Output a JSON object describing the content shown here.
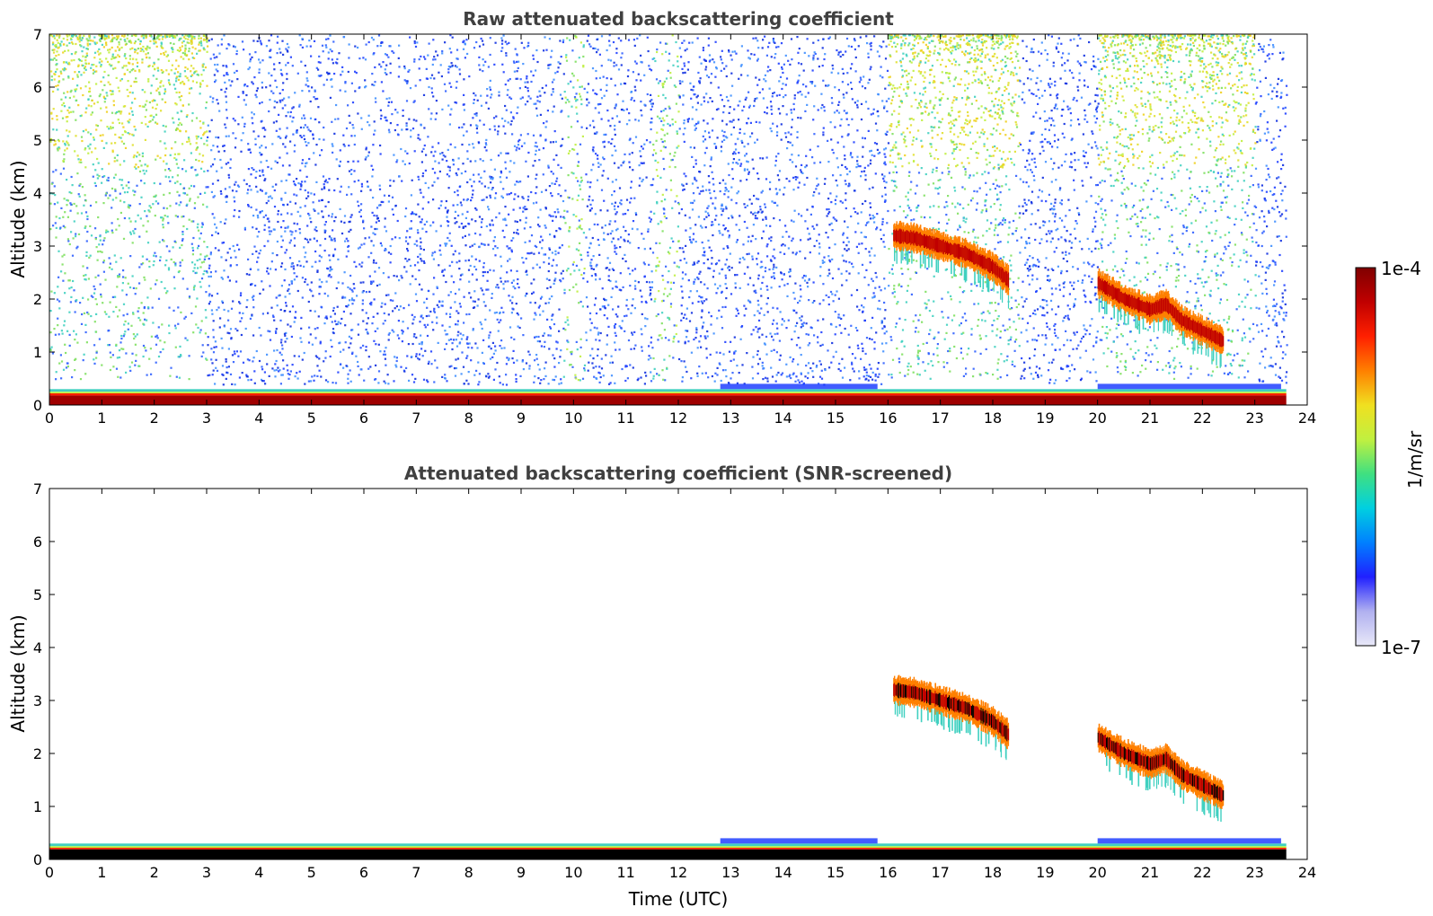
{
  "chart_data": [
    {
      "type": "heatmap",
      "title": "Raw attenuated backscattering coefficient",
      "xlabel": "",
      "ylabel": "Altitude (km)",
      "xlim": [
        0,
        24
      ],
      "ylim": [
        0,
        7
      ],
      "xticks": [
        "0",
        "1",
        "2",
        "3",
        "4",
        "5",
        "6",
        "7",
        "8",
        "9",
        "10",
        "11",
        "12",
        "13",
        "14",
        "15",
        "16",
        "17",
        "18",
        "19",
        "20",
        "21",
        "22",
        "23",
        "24"
      ],
      "yticks": [
        "0",
        "1",
        "2",
        "3",
        "4",
        "5",
        "6",
        "7"
      ],
      "data_end_time": 23.6,
      "surface_layer_top_km": 0.3,
      "noise_segments": [
        {
          "start": 0.0,
          "end": 3.0,
          "level": "high-yellow-green"
        },
        {
          "start": 3.0,
          "end": 9.8,
          "level": "blue"
        },
        {
          "start": 9.8,
          "end": 10.2,
          "level": "green"
        },
        {
          "start": 10.2,
          "end": 11.5,
          "level": "blue"
        },
        {
          "start": 11.5,
          "end": 12.0,
          "level": "green"
        },
        {
          "start": 12.0,
          "end": 16.0,
          "level": "blue"
        },
        {
          "start": 16.0,
          "end": 18.5,
          "level": "high-yellow-green"
        },
        {
          "start": 18.5,
          "end": 20.0,
          "level": "blue"
        },
        {
          "start": 20.0,
          "end": 23.0,
          "level": "high-yellow-green"
        },
        {
          "start": 23.0,
          "end": 23.6,
          "level": "blue"
        }
      ],
      "cloud_layers": [
        {
          "t": [
            16.1,
            16.5,
            17.0,
            17.5,
            18.0,
            18.3
          ],
          "alt_km": [
            3.2,
            3.15,
            3.0,
            2.85,
            2.6,
            2.35
          ]
        },
        {
          "t": [
            20.0,
            20.5,
            21.0,
            21.3,
            21.6,
            22.0,
            22.4
          ],
          "alt_km": [
            2.3,
            2.0,
            1.8,
            1.9,
            1.6,
            1.4,
            1.2
          ]
        }
      ]
    },
    {
      "type": "heatmap",
      "title": "Attenuated backscattering coefficient (SNR-screened)",
      "xlabel": "Time (UTC)",
      "ylabel": "Altitude (km)",
      "xlim": [
        0,
        24
      ],
      "ylim": [
        0,
        7
      ],
      "xticks": [
        "0",
        "1",
        "2",
        "3",
        "4",
        "5",
        "6",
        "7",
        "8",
        "9",
        "10",
        "11",
        "12",
        "13",
        "14",
        "15",
        "16",
        "17",
        "18",
        "19",
        "20",
        "21",
        "22",
        "23",
        "24"
      ],
      "yticks": [
        "0",
        "1",
        "2",
        "3",
        "4",
        "5",
        "6",
        "7"
      ],
      "data_end_time": 23.6,
      "surface_layer_top_km": 0.3,
      "cloud_layers": [
        {
          "t": [
            16.1,
            16.5,
            17.0,
            17.5,
            18.0,
            18.3
          ],
          "alt_km": [
            3.2,
            3.15,
            3.0,
            2.85,
            2.6,
            2.35
          ]
        },
        {
          "t": [
            20.0,
            20.5,
            21.0,
            21.3,
            21.6,
            22.0,
            22.4
          ],
          "alt_km": [
            2.3,
            2.0,
            1.8,
            1.9,
            1.6,
            1.4,
            1.2
          ]
        }
      ]
    }
  ],
  "colorbar": {
    "label": "1/m/sr",
    "max_label": "1e-4",
    "min_label": "1e-7",
    "colors": [
      "#e8e8f8",
      "#b0b0f0",
      "#2020ff",
      "#0080ff",
      "#00d0e0",
      "#40e080",
      "#c0f040",
      "#f0e020",
      "#ff8000",
      "#ff2000",
      "#c00000",
      "#800000"
    ]
  }
}
